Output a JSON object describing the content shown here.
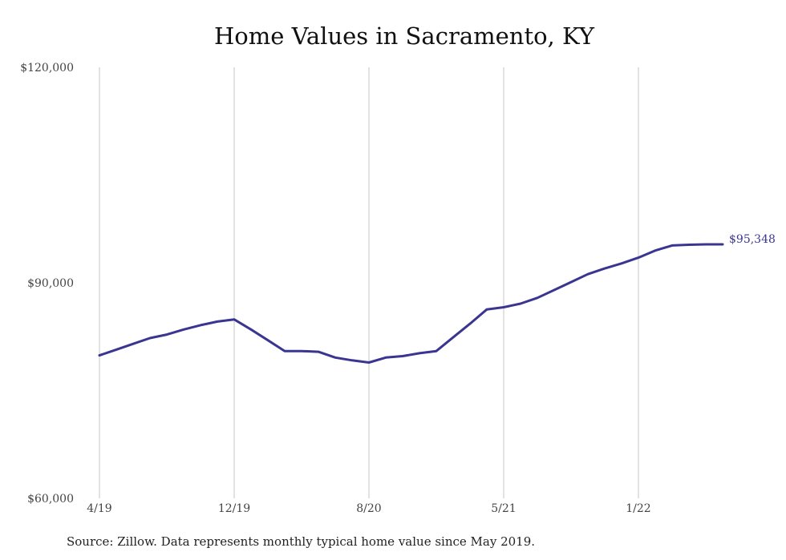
{
  "chart_data": {
    "type": "line",
    "title": "Home Values in Sacramento, KY",
    "xlabel": "",
    "ylabel": "",
    "x_tick_labels": [
      "4/19",
      "12/19",
      "8/20",
      "5/21",
      "1/22"
    ],
    "y_tick_labels": [
      "$120,000",
      "$90,000",
      "$60,000"
    ],
    "ylim": [
      60000,
      120000
    ],
    "grid": "vertical lines at x ticks",
    "x": [
      "2019-04",
      "2019-05",
      "2019-06",
      "2019-07",
      "2019-08",
      "2019-09",
      "2019-10",
      "2019-11",
      "2019-12",
      "2020-01",
      "2020-02",
      "2020-03",
      "2020-04",
      "2020-05",
      "2020-06",
      "2020-07",
      "2020-08",
      "2020-09",
      "2020-10",
      "2020-11",
      "2020-12",
      "2021-01",
      "2021-02",
      "2021-03",
      "2021-04",
      "2021-05",
      "2021-06",
      "2021-07",
      "2021-08",
      "2021-09",
      "2021-10",
      "2021-11",
      "2021-12",
      "2022-01",
      "2022-02",
      "2022-03",
      "2022-04",
      "2022-05"
    ],
    "series": [
      {
        "values": [
          79900,
          80700,
          81500,
          82300,
          82800,
          83500,
          84100,
          84600,
          84900,
          83500,
          82000,
          80500,
          80500,
          80400,
          79600,
          79200,
          78900,
          79600,
          79800,
          80200,
          80500,
          82400,
          84300,
          86300,
          86600,
          87100,
          87900,
          89000,
          90100,
          91200,
          92000,
          92700,
          93500,
          94500,
          95200,
          95300,
          95348,
          95348
        ],
        "color": "#3a3591"
      }
    ],
    "end_label": "$95,348",
    "source": "Source: Zillow. Data represents monthly typical home value since May 2019."
  }
}
